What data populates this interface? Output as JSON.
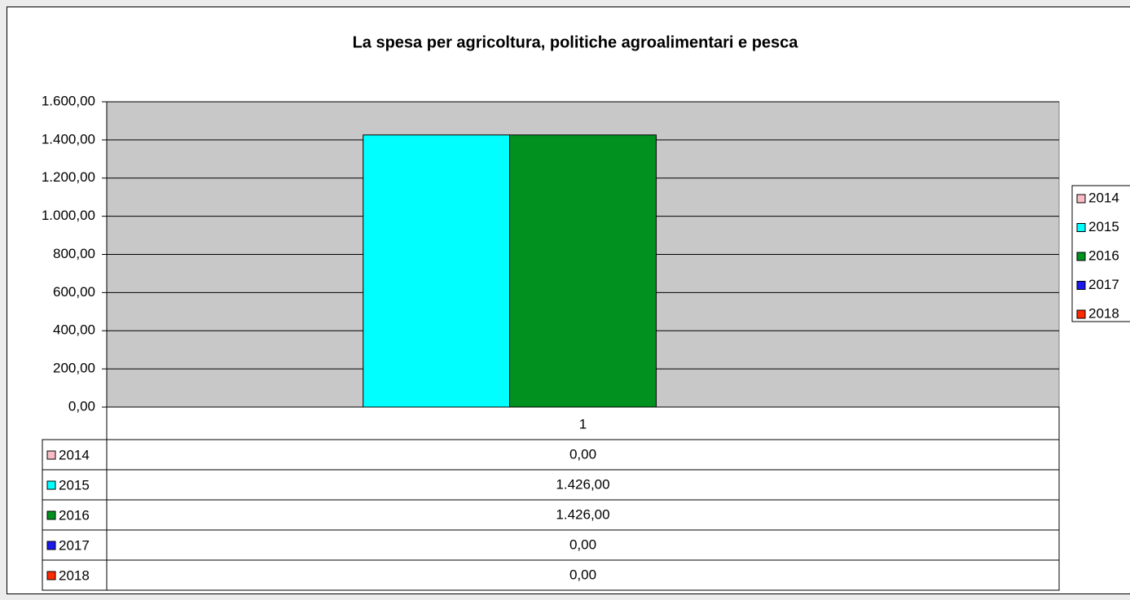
{
  "chart_data": {
    "type": "bar",
    "title": "La spesa per agricoltura, politiche agroalimentari e pesca",
    "categories": [
      "1"
    ],
    "series": [
      {
        "name": "2014",
        "color": "#f7bcc4",
        "values": [
          0
        ],
        "value_labels": [
          "0,00"
        ]
      },
      {
        "name": "2015",
        "color": "#00ffff",
        "values": [
          1426
        ],
        "value_labels": [
          "1.426,00"
        ]
      },
      {
        "name": "2016",
        "color": "#00911f",
        "values": [
          1426
        ],
        "value_labels": [
          "1.426,00"
        ]
      },
      {
        "name": "2017",
        "color": "#1a1aee",
        "values": [
          0
        ],
        "value_labels": [
          "0,00"
        ]
      },
      {
        "name": "2018",
        "color": "#ff2a00",
        "values": [
          0
        ],
        "value_labels": [
          "0,00"
        ]
      }
    ],
    "ylim": [
      0,
      1600
    ],
    "yticks": [
      {
        "value": 0,
        "label": "0,00"
      },
      {
        "value": 200,
        "label": "200,00"
      },
      {
        "value": 400,
        "label": "400,00"
      },
      {
        "value": 600,
        "label": "600,00"
      },
      {
        "value": 800,
        "label": "800,00"
      },
      {
        "value": 1000,
        "label": "1.000,00"
      },
      {
        "value": 1200,
        "label": "1.200,00"
      },
      {
        "value": 1400,
        "label": "1.400,00"
      },
      {
        "value": 1600,
        "label": "1.600,00"
      }
    ],
    "grid": true,
    "legend": "right",
    "plot_background": "#c8c8c8"
  }
}
